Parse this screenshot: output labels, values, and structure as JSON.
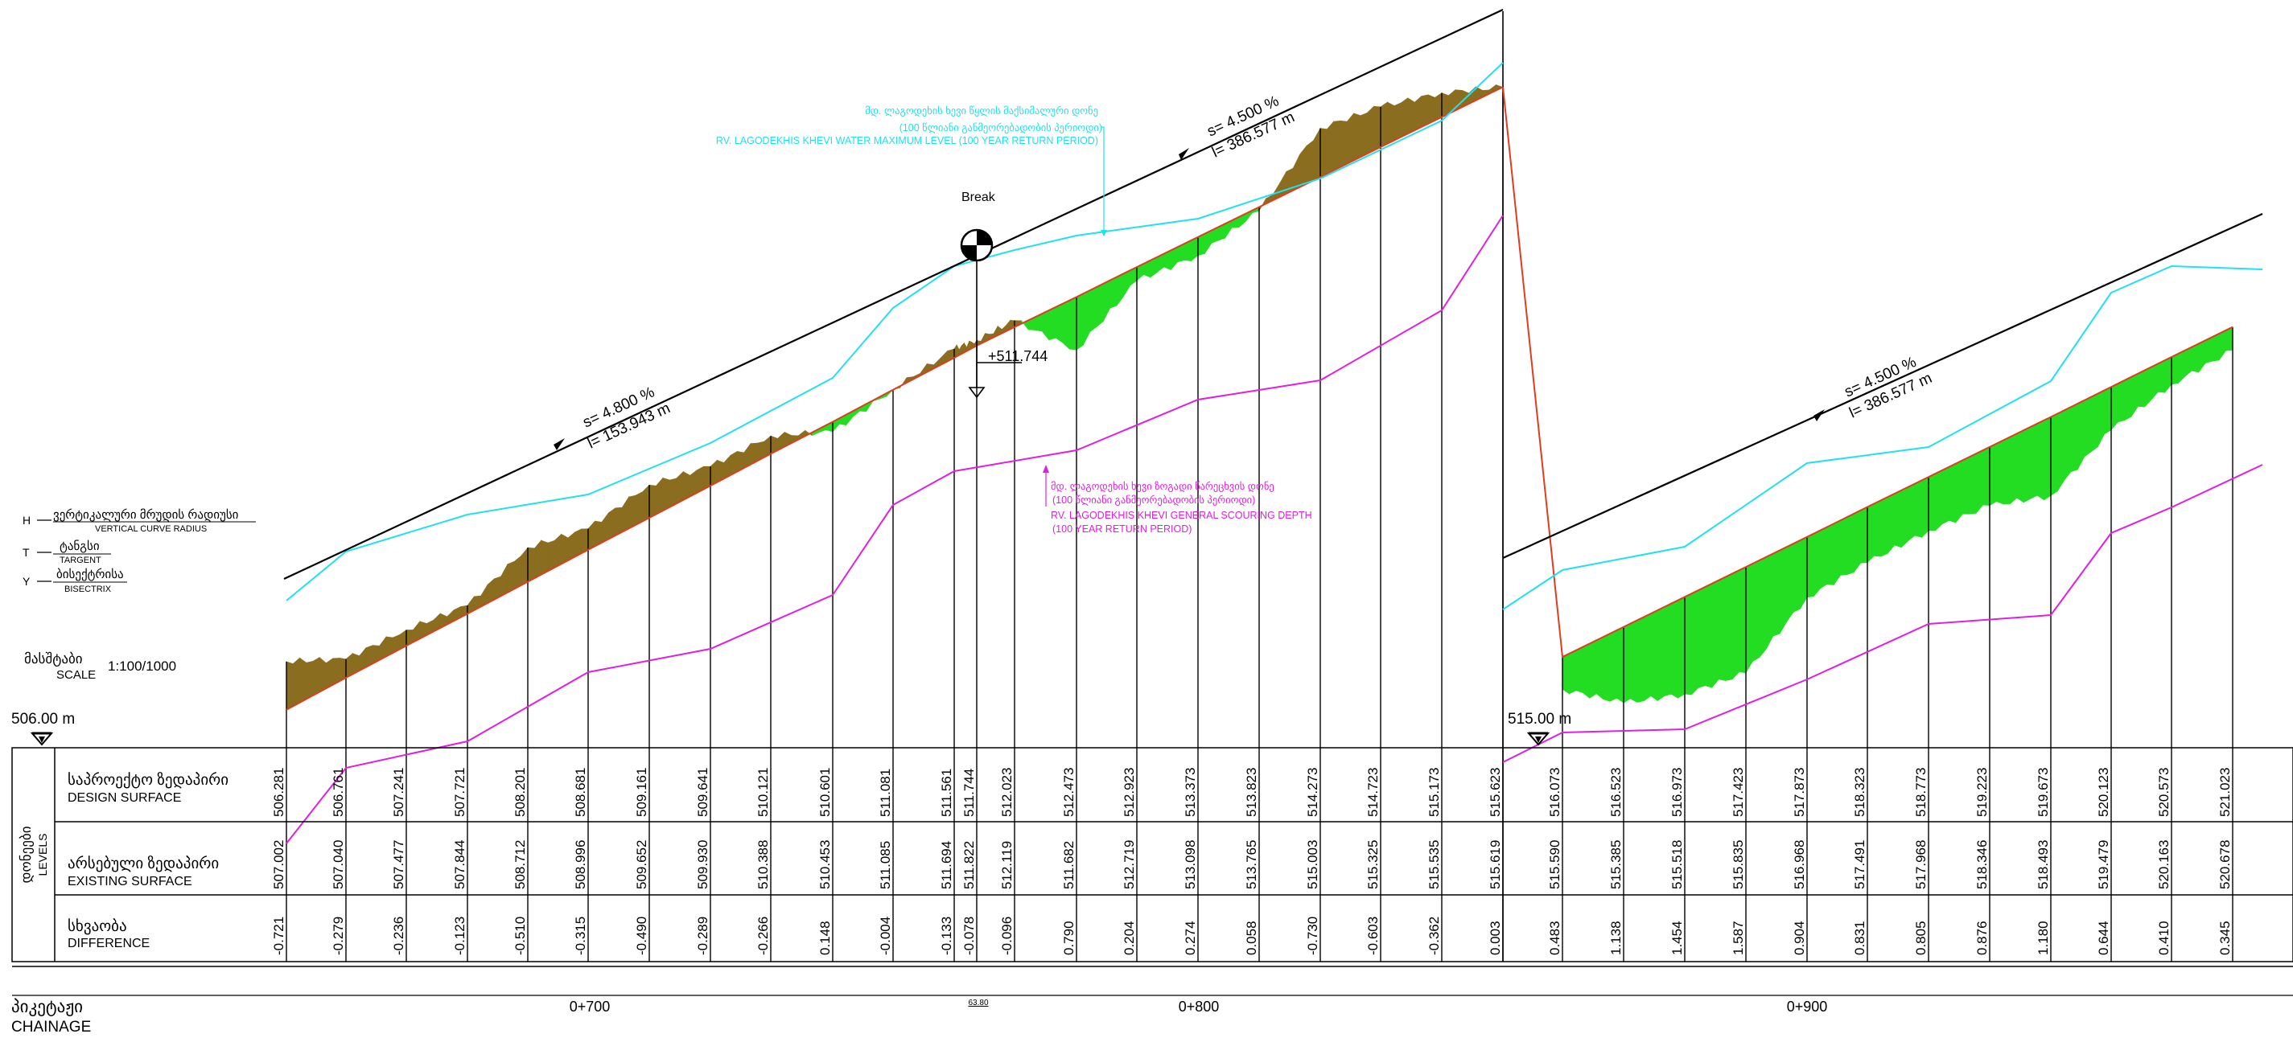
{
  "colors": {
    "design_line": "#e03c1e",
    "cut_fill": "#8a6d1e",
    "fill_fill": "#22dd22",
    "water_level": "#22e0ee",
    "scour_depth": "#e020e0",
    "text": "#000000"
  },
  "legend": {
    "h_symbol": "H",
    "h_label": "ვერტიკალური მრუდის რადიუსი",
    "h_label_en": "VERTICAL CURVE RADIUS",
    "t_symbol": "T",
    "t_label": "ტანგსი",
    "t_label_en": "TARGENT",
    "y_symbol": "Y",
    "y_label": "ბისექტრისა",
    "y_label_en": "BISECTRIX"
  },
  "scale": {
    "label": "მასშტაბი",
    "label_en": "SCALE",
    "value": "1:100/1000"
  },
  "datum_left": "506.00 m",
  "datum_right": "515.00 m",
  "annotations": {
    "break": "Break",
    "break_level": "+511.744",
    "slope1": "s= 4.800 %",
    "length1": "l= 153.943 m",
    "slope2": "s= 4.500 %",
    "length2": "l= 386.577 m",
    "slope3": "s= 4.500 %",
    "length3": "l= 386.577 m",
    "water_ka": "მდ. ლაგოდეხის ხევი წყლის მაქსიმალური დონე",
    "water_ka2": "(100 წლიანი განმეორებადობის პერიოდი)",
    "water_en": "RV. LAGODEKHIS KHEVI WATER MAXIMUM LEVEL (100 YEAR RETURN PERIOD)",
    "scour_ka": "მდ. ლაგოდეხის ხევი ზოგადი წარეცხვის დონე",
    "scour_ka2": "(100 წლიანი განმეორებადობის პერიოდი)",
    "scour_en": "RV. LAGODEKHIS KHEVI GENERAL SCOURING DEPTH",
    "scour_en2": "(100 YEAR RETURN PERIOD)"
  },
  "table": {
    "group_label": "დონეები",
    "group_label_en": "LEVELS",
    "rows": [
      {
        "label": "საპროექტო ზედაპირი",
        "label_en": "DESIGN SURFACE"
      },
      {
        "label": "არსებული ზედაპირი",
        "label_en": "EXISTING SURFACE"
      },
      {
        "label": "სხვაობა",
        "label_en": "DIFFERENCE"
      }
    ]
  },
  "chainage": {
    "label": "პიკეტაჟი",
    "label_en": "CHAINAGE",
    "ticks": [
      "0+700",
      "0+800",
      "0+900"
    ],
    "break_note": "63.80"
  },
  "stations": [
    {
      "design": "506.281",
      "existing": "507.002",
      "diff": "-0.721"
    },
    {
      "design": "506.761",
      "existing": "507.040",
      "diff": "-0.279"
    },
    {
      "design": "507.241",
      "existing": "507.477",
      "diff": "-0.236"
    },
    {
      "design": "507.721",
      "existing": "507.844",
      "diff": "-0.123"
    },
    {
      "design": "508.201",
      "existing": "508.712",
      "diff": "-0.510"
    },
    {
      "design": "508.681",
      "existing": "508.996",
      "diff": "-0.315"
    },
    {
      "design": "509.161",
      "existing": "509.652",
      "diff": "-0.490"
    },
    {
      "design": "509.641",
      "existing": "509.930",
      "diff": "-0.289"
    },
    {
      "design": "510.121",
      "existing": "510.388",
      "diff": "-0.266"
    },
    {
      "design": "510.601",
      "existing": "510.453",
      "diff": "0.148"
    },
    {
      "design": "511.081",
      "existing": "511.085",
      "diff": "-0.004"
    },
    {
      "design": "511.561",
      "existing": "511.694",
      "diff": "-0.133"
    },
    {
      "design": "511.744",
      "existing": "511.822",
      "diff": "-0.078"
    },
    {
      "design": "512.023",
      "existing": "512.119",
      "diff": "-0.096"
    },
    {
      "design": "512.473",
      "existing": "511.682",
      "diff": "0.790"
    },
    {
      "design": "512.923",
      "existing": "512.719",
      "diff": "0.204"
    },
    {
      "design": "513.373",
      "existing": "513.098",
      "diff": "0.274"
    },
    {
      "design": "513.823",
      "existing": "513.765",
      "diff": "0.058"
    },
    {
      "design": "514.273",
      "existing": "515.003",
      "diff": "-0.730"
    },
    {
      "design": "514.723",
      "existing": "515.325",
      "diff": "-0.603"
    },
    {
      "design": "515.173",
      "existing": "515.535",
      "diff": "-0.362"
    },
    {
      "design": "515.623",
      "existing": "515.619",
      "diff": "0.003"
    },
    {
      "design": "516.073",
      "existing": "515.590",
      "diff": "0.483"
    },
    {
      "design": "516.523",
      "existing": "515.385",
      "diff": "1.138"
    },
    {
      "design": "516.973",
      "existing": "515.518",
      "diff": "1.454"
    },
    {
      "design": "517.423",
      "existing": "515.835",
      "diff": "1.587"
    },
    {
      "design": "517.873",
      "existing": "516.968",
      "diff": "0.904"
    },
    {
      "design": "518.323",
      "existing": "517.491",
      "diff": "0.831"
    },
    {
      "design": "518.773",
      "existing": "517.968",
      "diff": "0.805"
    },
    {
      "design": "519.223",
      "existing": "518.346",
      "diff": "0.876"
    },
    {
      "design": "519.673",
      "existing": "518.493",
      "diff": "1.180"
    },
    {
      "design": "520.123",
      "existing": "519.479",
      "diff": "0.644"
    },
    {
      "design": "520.573",
      "existing": "520.163",
      "diff": "0.410"
    },
    {
      "design": "521.023",
      "existing": "520.678",
      "diff": "0.345"
    }
  ]
}
